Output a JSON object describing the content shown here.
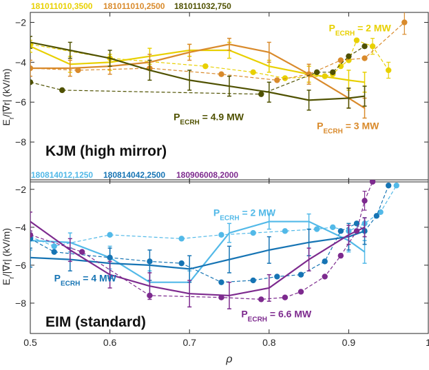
{
  "chart_data": [
    {
      "type": "line",
      "panel_label": "KJM (high mirror)",
      "ylabel": "E_r/|∇r| (kV/m)",
      "ylim": [
        -10,
        -1.5
      ],
      "xlim": [
        0.5,
        1.0
      ],
      "yticks": [
        -2,
        -4,
        -6,
        -8
      ],
      "legend": [
        "181011010,3500",
        "181011010,2500",
        "181011032,750"
      ],
      "annotations": [
        {
          "text": "P",
          "sub": "ECRH",
          "rest": " = 2 MW",
          "color": "#E8D000",
          "x": 0.875,
          "y": -2.45
        },
        {
          "text": "P",
          "sub": "ECRH",
          "rest": " = 4.9 MW",
          "color": "#4F5100",
          "x": 0.68,
          "y": -6.9
        },
        {
          "text": "P",
          "sub": "ECRH",
          "rest": " = 3 MW",
          "color": "#D98A2B",
          "x": 0.86,
          "y": -7.35
        }
      ],
      "series": [
        {
          "name": "181011010,3500",
          "color": "#E8D000",
          "profile": {
            "x": [
              0.5,
              0.55,
              0.6,
              0.65,
              0.7,
              0.75,
              0.8,
              0.85,
              0.9,
              0.92
            ],
            "y": [
              -3.2,
              -4.1,
              -4.0,
              -3.7,
              -3.4,
              -3.4,
              -4.2,
              -4.6,
              -4.9,
              -5.0
            ],
            "err": [
              0.3,
              0.4,
              0.4,
              0.4,
              0.3,
              0.4,
              0.3,
              0.4,
              0.5,
              0.5
            ]
          },
          "measured": {
            "x": [
              0.5,
              0.6,
              0.72,
              0.78,
              0.82,
              0.87,
              0.88,
              0.89,
              0.9,
              0.91,
              0.93,
              0.95
            ],
            "y": [
              -3.1,
              -3.8,
              -4.2,
              -4.5,
              -4.8,
              -4.7,
              -4.6,
              -4.2,
              -3.9,
              -2.9,
              -3.2,
              -4.4
            ],
            "err": [
              0,
              0,
              0,
              0,
              0,
              0,
              0,
              0,
              0,
              0,
              0.4,
              0.4
            ]
          }
        },
        {
          "name": "181011010,2500",
          "color": "#D98A2B",
          "profile": {
            "x": [
              0.5,
              0.55,
              0.6,
              0.65,
              0.7,
              0.75,
              0.8,
              0.85,
              0.9,
              0.92
            ],
            "y": [
              -4.3,
              -4.3,
              -4.2,
              -4.0,
              -3.5,
              -3.1,
              -3.5,
              -4.6,
              -5.8,
              -6.3
            ],
            "err": [
              0.4,
              0.4,
              0.4,
              0.4,
              0.4,
              0.3,
              0.5,
              0.5,
              0.5,
              0.5
            ]
          },
          "measured": {
            "x": [
              0.5,
              0.56,
              0.65,
              0.74,
              0.81,
              0.85,
              0.89,
              0.92,
              0.97
            ],
            "y": [
              -4.3,
              -4.4,
              -4.3,
              -4.6,
              -4.9,
              -4.6,
              -3.9,
              -3.8,
              -2.0
            ],
            "err": [
              0,
              0,
              0,
              0,
              0,
              0,
              0,
              0,
              0.6
            ]
          }
        },
        {
          "name": "181011032,750",
          "color": "#4F5100",
          "profile": {
            "x": [
              0.5,
              0.55,
              0.6,
              0.65,
              0.7,
              0.75,
              0.8,
              0.85,
              0.9,
              0.92
            ],
            "y": [
              -3.0,
              -3.4,
              -3.8,
              -4.4,
              -4.9,
              -5.2,
              -5.5,
              -5.9,
              -5.8,
              -5.7
            ],
            "err": [
              0.3,
              0.4,
              0.4,
              0.5,
              0.5,
              0.5,
              0.5,
              0.5,
              0.5,
              0.5
            ]
          },
          "measured": {
            "x": [
              0.5,
              0.54,
              0.79,
              0.86,
              0.88,
              0.9,
              0.92
            ],
            "y": [
              -5.0,
              -5.4,
              -5.6,
              -4.5,
              -4.5,
              -3.7,
              -3.2
            ],
            "err": [
              0,
              0,
              0,
              0,
              0,
              0,
              0
            ]
          }
        }
      ]
    },
    {
      "type": "line",
      "panel_label": "EIM (standard)",
      "ylabel": "E_r/|∇r| (kV/m)",
      "xlabel": "ρ",
      "ylim": [
        -9.6,
        -1.5
      ],
      "xlim": [
        0.5,
        1.0
      ],
      "yticks": [
        -2,
        -4,
        -6,
        -8
      ],
      "xticks": [
        0.5,
        0.6,
        0.7,
        0.8,
        0.9,
        1.0
      ],
      "xticklabels": [
        "0.5",
        "0.6",
        "0.7",
        "0.8",
        "0.9",
        "1"
      ],
      "legend": [
        "180814012,1250",
        "180814042,2500",
        "180906008,2000"
      ],
      "annotations": [
        {
          "text": "P",
          "sub": "ECRH",
          "rest": " = 2 MW",
          "color": "#52B9E8",
          "x": 0.73,
          "y": -3.4
        },
        {
          "text": "P",
          "sub": "ECRH",
          "rest": " = 4 MW",
          "color": "#1674B4",
          "x": 0.53,
          "y": -6.85
        },
        {
          "text": "P",
          "sub": "ECRH",
          "rest": " = 6.6 MW",
          "color": "#7D2A8E",
          "x": 0.765,
          "y": -8.75
        }
      ],
      "series": [
        {
          "name": "180814012,1250",
          "color": "#52B9E8",
          "profile": {
            "x": [
              0.5,
              0.55,
              0.6,
              0.65,
              0.7,
              0.75,
              0.8,
              0.85,
              0.9,
              0.92
            ],
            "y": [
              -4.7,
              -4.8,
              -5.6,
              -6.9,
              -6.9,
              -4.3,
              -3.7,
              -3.7,
              -4.7,
              -5.3
            ],
            "err": [
              0.5,
              0.5,
              0.6,
              0.6,
              0.6,
              0.5,
              0.4,
              0.4,
              0.6,
              0.6
            ]
          },
          "measured": {
            "x": [
              0.5,
              0.53,
              0.6,
              0.69,
              0.74,
              0.78,
              0.82,
              0.86,
              0.88,
              0.9,
              0.92,
              0.94,
              0.96
            ],
            "y": [
              -4.5,
              -5.0,
              -4.4,
              -4.6,
              -4.4,
              -4.3,
              -4.2,
              -4.1,
              -4.0,
              -4.2,
              -3.8,
              -3.2,
              -1.8
            ],
            "err": [
              0,
              0,
              0,
              0,
              0,
              0,
              0,
              0,
              0,
              0,
              0,
              0,
              0
            ]
          }
        },
        {
          "name": "180814042,2500",
          "color": "#1674B4",
          "profile": {
            "x": [
              0.5,
              0.55,
              0.6,
              0.65,
              0.7,
              0.75,
              0.8,
              0.85,
              0.9,
              0.92
            ],
            "y": [
              -5.6,
              -5.7,
              -5.9,
              -6.0,
              -6.2,
              -5.7,
              -5.2,
              -4.8,
              -4.5,
              -4.2
            ],
            "err": [
              0.5,
              0.6,
              0.8,
              0.8,
              0.7,
              0.7,
              0.7,
              0.7,
              0.7,
              0.7
            ]
          },
          "measured": {
            "x": [
              0.5,
              0.53,
              0.6,
              0.65,
              0.69,
              0.74,
              0.78,
              0.81,
              0.84,
              0.87,
              0.89,
              0.91,
              0.92,
              0.935,
              0.95
            ],
            "y": [
              -4.6,
              -5.3,
              -5.6,
              -5.8,
              -5.9,
              -6.9,
              -6.8,
              -6.6,
              -6.5,
              -5.8,
              -4.2,
              -3.8,
              -4.2,
              -3.4,
              -1.8
            ],
            "err": [
              0,
              0,
              0,
              0,
              0,
              0,
              0,
              0,
              0,
              0,
              0,
              0,
              0,
              0,
              0
            ]
          }
        },
        {
          "name": "180906008,2000",
          "color": "#7D2A8E",
          "profile": {
            "x": [
              0.5,
              0.55,
              0.6,
              0.65,
              0.7,
              0.75,
              0.8,
              0.85,
              0.9,
              0.92
            ],
            "y": [
              -3.7,
              -5.2,
              -6.5,
              -7.1,
              -7.5,
              -7.6,
              -7.2,
              -5.7,
              -4.4,
              -4.0
            ],
            "err": [
              0.5,
              0.6,
              0.7,
              0.7,
              0.7,
              0.7,
              0.7,
              0.6,
              0.5,
              0.5
            ]
          },
          "measured": {
            "x": [
              0.5,
              0.565,
              0.65,
              0.74,
              0.79,
              0.82,
              0.84,
              0.87,
              0.89,
              0.91,
              0.92,
              0.93
            ],
            "y": [
              -4.4,
              -5.3,
              -7.6,
              -7.7,
              -7.8,
              -7.7,
              -7.4,
              -6.6,
              -5.5,
              -4.2,
              -2.6,
              -1.6
            ],
            "err": [
              0,
              0,
              0,
              0,
              0,
              0,
              0,
              0,
              0,
              0,
              0.5,
              0
            ]
          }
        }
      ]
    }
  ]
}
